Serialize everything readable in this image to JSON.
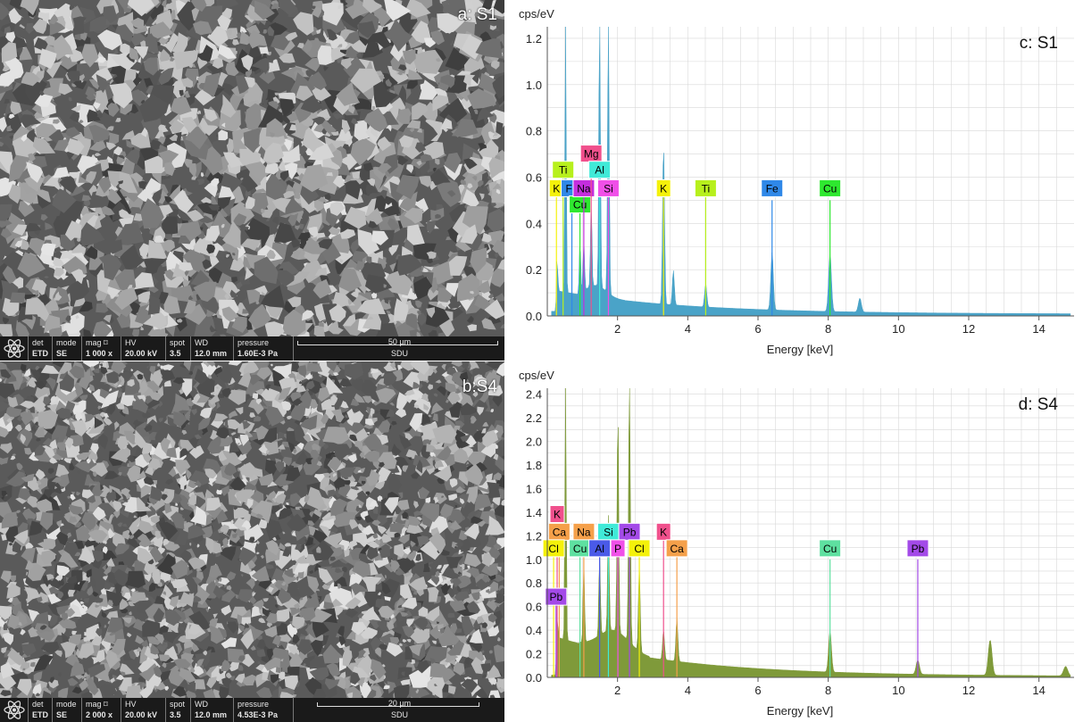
{
  "panels": {
    "a": {
      "label": "a: S1"
    },
    "b": {
      "label": "b:S4"
    }
  },
  "databar_a": {
    "det_h": "det",
    "det_v": "ETD",
    "mode_h": "mode",
    "mode_v": "SE",
    "mag_h": "mag  ⌑",
    "mag_v": "1 000 x",
    "hv_h": "HV",
    "hv_v": "20.00 kV",
    "spot_h": "spot",
    "spot_v": "3.5",
    "wd_h": "WD",
    "wd_v": "12.0 mm",
    "pressure_h": "pressure",
    "pressure_v": "1.60E-3 Pa",
    "scale": "50 µm",
    "lab": "SDU"
  },
  "databar_b": {
    "det_h": "det",
    "det_v": "ETD",
    "mode_h": "mode",
    "mode_v": "SE",
    "mag_h": "mag  ⌑",
    "mag_v": "2 000 x",
    "hv_h": "HV",
    "hv_v": "20.00 kV",
    "spot_h": "spot",
    "spot_v": "3.5",
    "wd_h": "WD",
    "wd_v": "12.0 mm",
    "pressure_h": "pressure",
    "pressure_v": "4.53E-3 Pa",
    "scale": "20 µm",
    "lab": "SDU"
  },
  "colors": {
    "c_fill": "#4aa3c8",
    "d_fill": "#7f9a3a",
    "grid": "#d8d8d8",
    "axis": "#555555"
  },
  "chart_data": [
    {
      "type": "area",
      "title": "c: S1",
      "ylabel": "cps/eV",
      "xlabel": "Energy [keV]",
      "xlim": [
        0.0,
        15.0
      ],
      "ylim": [
        0.0,
        1.25
      ],
      "xticks": [
        2,
        4,
        6,
        8,
        10,
        12,
        14
      ],
      "yticks": [
        0.0,
        0.2,
        0.4,
        0.6,
        0.8,
        1.0,
        1.2
      ],
      "yticklabels": [
        "0.0",
        "0.2",
        "0.4",
        "0.6",
        "0.8",
        "1.0",
        "1.2"
      ],
      "peaks": [
        {
          "x": 0.28,
          "y": 0.25
        },
        {
          "x": 0.52,
          "y": 1.25
        },
        {
          "x": 0.93,
          "y": 0.22
        },
        {
          "x": 1.04,
          "y": 0.22
        },
        {
          "x": 1.25,
          "y": 0.38
        },
        {
          "x": 1.49,
          "y": 1.25
        },
        {
          "x": 1.74,
          "y": 1.25
        },
        {
          "x": 3.31,
          "y": 0.7
        },
        {
          "x": 3.59,
          "y": 0.15
        },
        {
          "x": 4.51,
          "y": 0.1
        },
        {
          "x": 6.4,
          "y": 0.25
        },
        {
          "x": 8.05,
          "y": 0.25
        },
        {
          "x": 8.9,
          "y": 0.06
        }
      ],
      "elements": [
        {
          "name": "K",
          "x": 0.26,
          "level": 0.55,
          "line": 0.55,
          "color": "#f4f10a"
        },
        {
          "name": "Ti",
          "x": 0.45,
          "level": 0.63,
          "line": 0.63,
          "color": "#b7f01d"
        },
        {
          "name": "Fe",
          "x": 0.7,
          "level": 0.55,
          "line": 0.55,
          "color": "#2f88e8"
        },
        {
          "name": "Cu",
          "x": 0.93,
          "level": 0.48,
          "line": 0.48,
          "color": "#2ee82f"
        },
        {
          "name": "Na",
          "x": 1.04,
          "level": 0.55,
          "line": 0.55,
          "color": "#c42edd"
        },
        {
          "name": "Mg",
          "x": 1.25,
          "level": 0.7,
          "line": 0.7,
          "color": "#f0508c"
        },
        {
          "name": "Al",
          "x": 1.49,
          "level": 0.63,
          "line": 0.63,
          "color": "#40ead8"
        },
        {
          "name": "Si",
          "x": 1.74,
          "level": 0.55,
          "line": 0.55,
          "color": "#f050e8"
        },
        {
          "name": "K",
          "x": 3.31,
          "level": 0.55,
          "line": 0.55,
          "color": "#f4f10a"
        },
        {
          "name": "Ti",
          "x": 4.51,
          "level": 0.55,
          "line": 0.55,
          "color": "#b7f01d"
        },
        {
          "name": "Fe",
          "x": 6.4,
          "level": 0.55,
          "line": 0.5,
          "color": "#2f88e8"
        },
        {
          "name": "Cu",
          "x": 8.05,
          "level": 0.55,
          "line": 0.5,
          "color": "#2ee82f"
        }
      ]
    },
    {
      "type": "area",
      "title": "d: S4",
      "ylabel": "cps/eV",
      "xlabel": "Energy [keV]",
      "xlim": [
        0.0,
        15.0
      ],
      "ylim": [
        0.0,
        2.45
      ],
      "xticks": [
        2,
        4,
        6,
        8,
        10,
        12,
        14
      ],
      "yticks": [
        0.0,
        0.2,
        0.4,
        0.6,
        0.8,
        1.0,
        1.2,
        1.4,
        1.6,
        1.8,
        2.0,
        2.2,
        2.4
      ],
      "yticklabels": [
        "0.0",
        "0.2",
        "0.4",
        "0.6",
        "0.8",
        "1.0",
        "1.2",
        "1.4",
        "1.6",
        "1.8",
        "2.0",
        "2.2",
        "2.4"
      ],
      "peaks": [
        {
          "x": 0.28,
          "y": 0.6
        },
        {
          "x": 0.52,
          "y": 2.45
        },
        {
          "x": 1.04,
          "y": 0.7
        },
        {
          "x": 1.49,
          "y": 0.7
        },
        {
          "x": 1.74,
          "y": 1.0
        },
        {
          "x": 2.01,
          "y": 1.9
        },
        {
          "x": 2.34,
          "y": 2.45
        },
        {
          "x": 2.62,
          "y": 0.75
        },
        {
          "x": 3.31,
          "y": 0.25
        },
        {
          "x": 3.69,
          "y": 0.37
        },
        {
          "x": 8.05,
          "y": 0.35
        },
        {
          "x": 10.55,
          "y": 0.12
        },
        {
          "x": 12.61,
          "y": 0.3
        },
        {
          "x": 14.76,
          "y": 0.08
        }
      ],
      "elements": [
        {
          "name": "K",
          "x": 0.28,
          "level": 1.38,
          "line": 1.38,
          "color": "#f0508c"
        },
        {
          "name": "Ca",
          "x": 0.34,
          "level": 1.23,
          "line": 1.23,
          "color": "#f5a04a"
        },
        {
          "name": "Cl",
          "x": 0.18,
          "level": 1.09,
          "line": 1.09,
          "color": "#f4f10a"
        },
        {
          "name": "Pb",
          "x": 0.25,
          "level": 0.68,
          "line": 0.68,
          "color": "#a34ae8"
        },
        {
          "name": "Na",
          "x": 1.04,
          "level": 1.23,
          "line": 1.23,
          "color": "#f5a04a"
        },
        {
          "name": "Cu",
          "x": 0.93,
          "level": 1.09,
          "line": 1.09,
          "color": "#5ee0a0"
        },
        {
          "name": "Si",
          "x": 1.74,
          "level": 1.23,
          "line": 1.23,
          "color": "#40ead8"
        },
        {
          "name": "Al",
          "x": 1.49,
          "level": 1.09,
          "line": 1.09,
          "color": "#4a5ae8"
        },
        {
          "name": "Pb",
          "x": 2.34,
          "level": 1.23,
          "line": 1.23,
          "color": "#a34ae8"
        },
        {
          "name": "P",
          "x": 2.01,
          "level": 1.09,
          "line": 1.09,
          "color": "#f050e8"
        },
        {
          "name": "Cl",
          "x": 2.62,
          "level": 1.09,
          "line": 1.09,
          "color": "#f4f10a"
        },
        {
          "name": "K",
          "x": 3.31,
          "level": 1.23,
          "line": 1.23,
          "color": "#f0508c"
        },
        {
          "name": "Ca",
          "x": 3.69,
          "level": 1.09,
          "line": 1.09,
          "color": "#f5a04a"
        },
        {
          "name": "Cu",
          "x": 8.05,
          "level": 1.09,
          "line": 1.0,
          "color": "#5ee0a0"
        },
        {
          "name": "Pb",
          "x": 10.55,
          "level": 1.09,
          "line": 1.0,
          "color": "#a34ae8"
        }
      ]
    }
  ]
}
